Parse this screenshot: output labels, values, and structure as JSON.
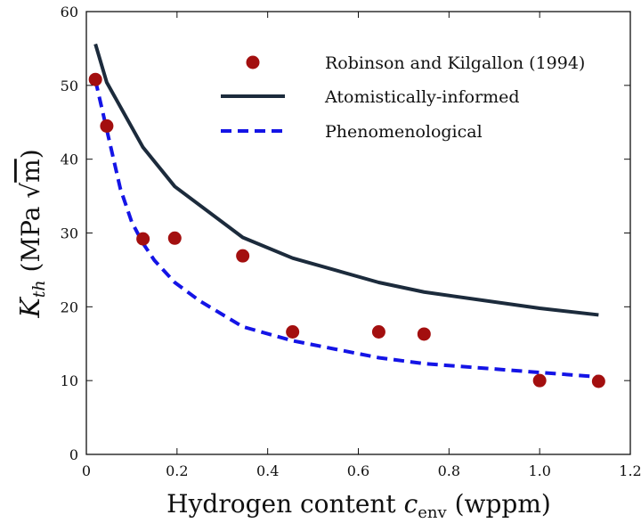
{
  "chart_data": {
    "type": "scatter",
    "xlabel_text": "Hydrogen content",
    "xlabel_symbol": "c",
    "xlabel_subscript": "env",
    "xlabel_unit": "(wppm)",
    "ylabel_symbol": "K",
    "ylabel_subscript": "th",
    "ylabel_unit_prefix": "(MPa",
    "ylabel_unit_root": "m",
    "ylabel_unit_suffix": ")",
    "xlim": [
      0,
      1.2
    ],
    "ylim": [
      0,
      60
    ],
    "x_ticks": [
      0,
      0.2,
      0.4,
      0.6,
      0.8,
      1.0,
      1.2
    ],
    "x_tick_labels": [
      "0",
      "0.2",
      "0.4",
      "0.6",
      "0.8",
      "1.0",
      "1.2"
    ],
    "y_ticks": [
      0,
      10,
      20,
      30,
      40,
      50,
      60
    ],
    "y_tick_labels": [
      "0",
      "10",
      "20",
      "30",
      "40",
      "50",
      "60"
    ],
    "grid": false,
    "legend_position": "top-right",
    "series": [
      {
        "name": "Robinson and Kilgallon (1994)",
        "kind": "scatter",
        "color": "#a30f0f",
        "x": [
          0.02,
          0.045,
          0.125,
          0.195,
          0.345,
          0.455,
          0.645,
          0.745,
          1.0,
          1.13
        ],
        "y": [
          50.8,
          44.5,
          29.2,
          29.3,
          26.9,
          16.6,
          16.6,
          16.3,
          10.0,
          9.9
        ]
      },
      {
        "name": "Atomistically-informed",
        "kind": "line",
        "style": "solid",
        "color": "#1c2b3c",
        "x": [
          0.02,
          0.045,
          0.125,
          0.195,
          0.345,
          0.455,
          0.645,
          0.745,
          1.0,
          1.13
        ],
        "y": [
          55.6,
          50.4,
          41.6,
          36.3,
          29.4,
          26.6,
          23.3,
          22.0,
          19.8,
          18.9
        ]
      },
      {
        "name": "Phenomenological",
        "kind": "line",
        "style": "dashed",
        "color": "#1414e6",
        "x": [
          0.02,
          0.045,
          0.075,
          0.1,
          0.125,
          0.15,
          0.195,
          0.25,
          0.345,
          0.455,
          0.645,
          0.745,
          1.0,
          1.13
        ],
        "y": [
          50.7,
          44.0,
          36.0,
          31.5,
          28.6,
          26.3,
          23.3,
          20.8,
          17.3,
          15.4,
          13.1,
          12.3,
          11.1,
          10.5
        ]
      }
    ]
  }
}
